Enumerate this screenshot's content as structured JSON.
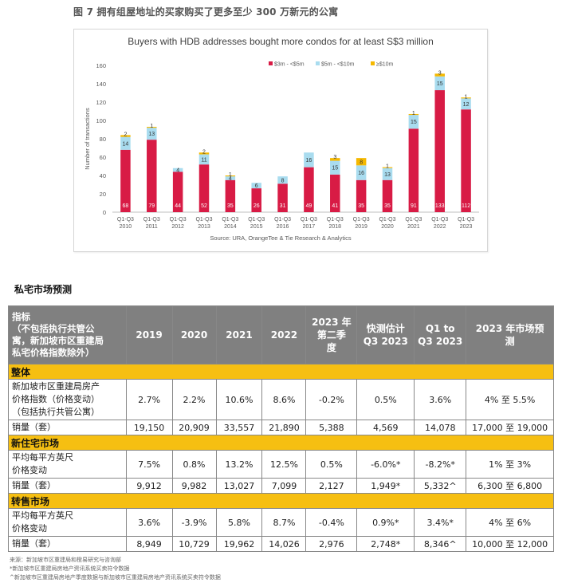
{
  "figure": {
    "caption": "图 7 拥有组屋地址的买家购买了更多至少 300 万新元的公寓"
  },
  "chart_data": {
    "type": "bar",
    "stacked": true,
    "title": "Buyers with HDB addresses bought more condos for at least S$3 million",
    "ylabel": "Number of transactions",
    "xlabel": "",
    "source": "Source: URA, OrangeTee & Tie Research & Analytics",
    "ylim": [
      0,
      160
    ],
    "yticks": [
      "0",
      "20",
      "40",
      "60",
      "80",
      "100",
      "120",
      "140",
      "160"
    ],
    "legend_position": "top-right",
    "categories": [
      "Q1-Q3 2010",
      "Q1-Q3 2011",
      "Q1-Q3 2012",
      "Q1-Q3 2013",
      "Q1-Q3 2014",
      "Q1-Q3 2015",
      "Q1-Q3 2016",
      "Q1-Q3 2017",
      "Q1-Q3 2018",
      "Q1-Q3 2019",
      "Q1-Q3 2020",
      "Q1-Q3 2021",
      "Q1-Q3 2022",
      "Q1-Q3 2023"
    ],
    "category_lines": [
      [
        "Q1-Q3",
        "2010"
      ],
      [
        "Q1-Q3",
        "2011"
      ],
      [
        "Q1-Q3",
        "2012"
      ],
      [
        "Q1-Q3",
        "2013"
      ],
      [
        "Q1-Q3",
        "2014"
      ],
      [
        "Q1-Q3",
        "2015"
      ],
      [
        "Q1-Q3",
        "2016"
      ],
      [
        "Q1-Q3",
        "2017"
      ],
      [
        "Q1-Q3",
        "2018"
      ],
      [
        "Q1-Q3",
        "2019"
      ],
      [
        "Q1-Q3",
        "2020"
      ],
      [
        "Q1-Q3",
        "2021"
      ],
      [
        "Q1-Q3",
        "2022"
      ],
      [
        "Q1-Q3",
        "2023"
      ]
    ],
    "series": [
      {
        "name": "$3m - <$5m",
        "color": "#d81b45",
        "values": [
          68,
          79,
          44,
          52,
          35,
          26,
          31,
          49,
          41,
          35,
          35,
          91,
          133,
          112
        ]
      },
      {
        "name": "$5m - <$10m",
        "color": "#a9dcef",
        "values": [
          14,
          13,
          4,
          11,
          4,
          6,
          8,
          16,
          15,
          16,
          13,
          15,
          15,
          12
        ]
      },
      {
        "name": "≥$10m",
        "color": "#f5b800",
        "values": [
          2,
          1,
          0,
          2,
          1,
          0,
          0,
          0,
          3,
          8,
          1,
          1,
          3,
          1
        ]
      }
    ],
    "data_labels": [
      [
        "68",
        "14",
        "2"
      ],
      [
        "79",
        "13",
        "1"
      ],
      [
        "44",
        "4",
        ""
      ],
      [
        "52",
        "11",
        "2"
      ],
      [
        "35",
        "4",
        "1"
      ],
      [
        "26",
        "6",
        ""
      ],
      [
        "31",
        "8",
        ""
      ],
      [
        "49",
        "16",
        ""
      ],
      [
        "41",
        "15",
        "3"
      ],
      [
        "35",
        "16",
        "8"
      ],
      [
        "35",
        "13",
        "1"
      ],
      [
        "91",
        "15",
        "1"
      ],
      [
        "133",
        "15",
        "3"
      ],
      [
        "112",
        "12",
        "1"
      ]
    ]
  },
  "section_title": "私宅市场预测",
  "table": {
    "headers": [
      [
        "指标",
        "（不包括执行共管公",
        "寓，新加坡市区重建局",
        "私宅价格指数除外）"
      ],
      [
        "2019"
      ],
      [
        "2020"
      ],
      [
        "2021"
      ],
      [
        "2022"
      ],
      [
        "2023 年",
        "第二季",
        "度"
      ],
      [
        "快测估计",
        "Q3 2023"
      ],
      [
        "Q1 to",
        "Q3 2023"
      ],
      [
        "2023 年市场预",
        "测"
      ]
    ],
    "sections": [
      {
        "name": "整体",
        "rows": [
          {
            "label": [
              "新加坡市区重建局房产",
              "价格指数（价格变动）",
              "（包括执行共管公寓）"
            ],
            "cells": [
              "2.7%",
              "2.2%",
              "10.6%",
              "8.6%",
              "-0.2%",
              "0.5%",
              "3.6%",
              "4% 至 5.5%"
            ]
          },
          {
            "label": [
              "销量（套）"
            ],
            "cells": [
              "19,150",
              "20,909",
              "33,557",
              "21,890",
              "5,388",
              "4,569",
              "14,078",
              "17,000 至 19,000"
            ]
          }
        ]
      },
      {
        "name": "新住宅市场",
        "rows": [
          {
            "label": [
              "平均每平方英尺",
              " 价格变动"
            ],
            "cells": [
              "7.5%",
              "0.8%",
              "13.2%",
              "12.5%",
              "0.5%",
              "-6.0%*",
              "-8.2%*",
              "1% 至 3%"
            ]
          },
          {
            "label": [
              "销量（套）"
            ],
            "cells": [
              "9,912",
              "9,982",
              "13,027",
              "7,099",
              "2,127",
              "1,949*",
              "5,332^",
              "6,300 至 6,800"
            ]
          }
        ]
      },
      {
        "name": "转售市场",
        "rows": [
          {
            "label": [
              "平均每平方英尺",
              " 价格变动"
            ],
            "cells": [
              "3.6%",
              "-3.9%",
              "5.8%",
              "8.7%",
              "-0.4%",
              "0.9%*",
              "3.4%*",
              "4% 至 6%"
            ]
          },
          {
            "label": [
              "销量（套）"
            ],
            "cells": [
              "8,949",
              "10,729",
              "19,962",
              "14,026",
              "2,976",
              "2,748*",
              "8,346^",
              "10,000 至 12,000"
            ]
          }
        ]
      }
    ]
  },
  "sources": [
    "来源：新加坡市区重建局和橙易研究与咨询部",
    "*新加坡市区重建局房地产资讯系统买卖符令数据",
    "^新加坡市区重建局房地产季度数据与新加坡市区重建局房地产资讯系统买卖符令数据"
  ]
}
